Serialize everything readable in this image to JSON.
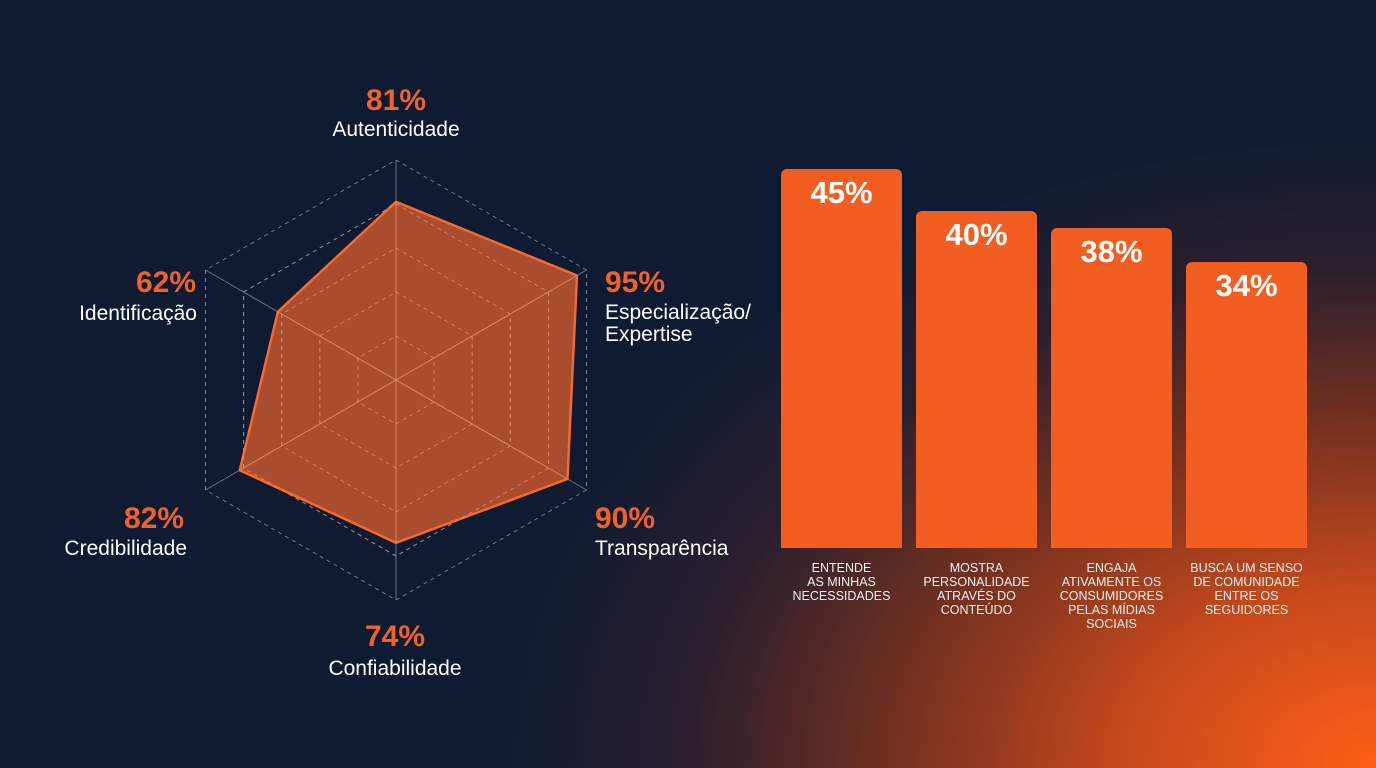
{
  "chart_data": [
    {
      "type": "radar",
      "scale_max": 100,
      "axes": [
        {
          "name": "Autenticidade",
          "value": 81,
          "label": "81%"
        },
        {
          "name": "Especialização/\nExpertise",
          "value": 95,
          "label": "95%"
        },
        {
          "name": "Transparência",
          "value": 90,
          "label": "90%"
        },
        {
          "name": "Confiabilidade",
          "value": 74,
          "label": "74%"
        },
        {
          "name": "Credibilidade",
          "value": 82,
          "label": "82%"
        },
        {
          "name": "Identificação",
          "value": 62,
          "label": "62%"
        }
      ],
      "colors": {
        "fill": "#e8602c",
        "stroke": "#f26a30",
        "grid": "#8e97a8"
      }
    },
    {
      "type": "bar",
      "categories": [
        "ENTENDE\nAS MINHAS\nNECESSIDADES",
        "MOSTRA\nPERSONALIDADE\nATRAVÉS DO\nCONTEÚDO",
        "ENGAJA\nATIVAMENTE OS\nCONSUMIDORES\nPELAS MÍDIAS\nSOCIAIS",
        "BUSCA UM SENSO\nDE COMUNIDADE\nENTRE OS\nSEGUIDORES"
      ],
      "values": [
        45,
        40,
        38,
        34
      ],
      "value_labels": [
        "45%",
        "40%",
        "38%",
        "34%"
      ],
      "ylim": [
        0,
        45
      ],
      "colors": {
        "bar": "#f25d22"
      }
    }
  ]
}
